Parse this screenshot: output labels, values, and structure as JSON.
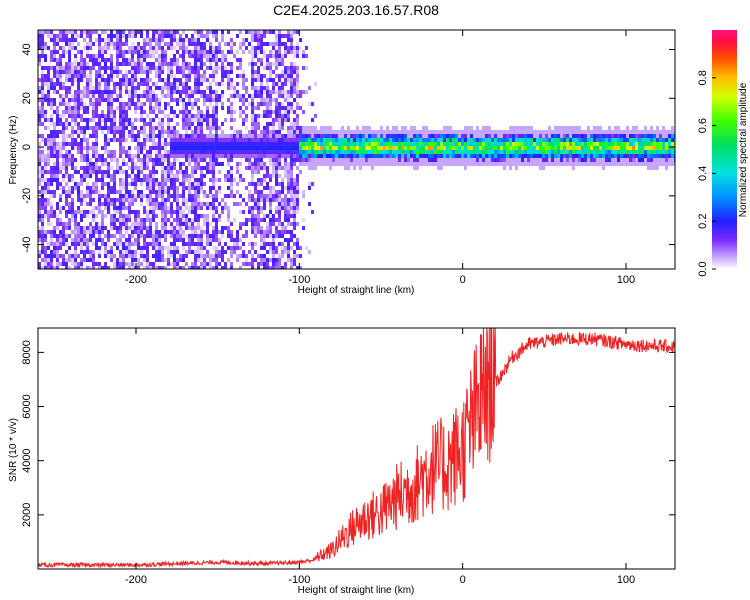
{
  "figure": {
    "title": "C2E4.2025.203.16.57.R08"
  },
  "chart_data": [
    {
      "type": "heatmap",
      "title": "C2E4.2025.203.16.57.R08",
      "xlabel": "Height of straight line (km)",
      "ylabel": "Frequency (Hz)",
      "xlim": [
        -260,
        130
      ],
      "ylim": [
        -50,
        48
      ],
      "xticks": [
        -200,
        -100,
        0,
        100
      ],
      "yticks": [
        -40,
        -20,
        0,
        20,
        40
      ],
      "colorbar": {
        "label": "Normalized spectral amplitude",
        "ticks": [
          0.0,
          0.2,
          0.4,
          0.6,
          0.8
        ],
        "range": [
          0,
          1
        ],
        "colormap": "rainbow (magenta-red high, blue-purple low, white zero)"
      },
      "features": {
        "noise_region_x": [
          -260,
          -100
        ],
        "carrier_frequency_hz": 0,
        "band_start_x": -180,
        "band_strong_from_x": -100
      }
    },
    {
      "type": "line",
      "xlabel": "Height of straight line (km)",
      "ylabel": "SNR (10 * v/v)",
      "xlim": [
        -260,
        130
      ],
      "ylim": [
        0,
        8900
      ],
      "xticks": [
        -200,
        -100,
        0,
        100
      ],
      "yticks": [
        2000,
        4000,
        6000,
        8000
      ],
      "color": "#ee2222",
      "series": [
        {
          "x": [
            -260,
            -200,
            -150,
            -120,
            -100,
            -90,
            -80,
            -70,
            -60,
            -50,
            -40,
            -30,
            -20,
            -10,
            0,
            10,
            20,
            30,
            40,
            60,
            80,
            100,
            130
          ],
          "values": [
            150,
            150,
            250,
            200,
            250,
            350,
            600,
            1200,
            1600,
            1800,
            2300,
            2600,
            3200,
            3300,
            3800,
            5200,
            6800,
            7800,
            8300,
            8500,
            8500,
            8300,
            8200
          ]
        }
      ]
    }
  ]
}
